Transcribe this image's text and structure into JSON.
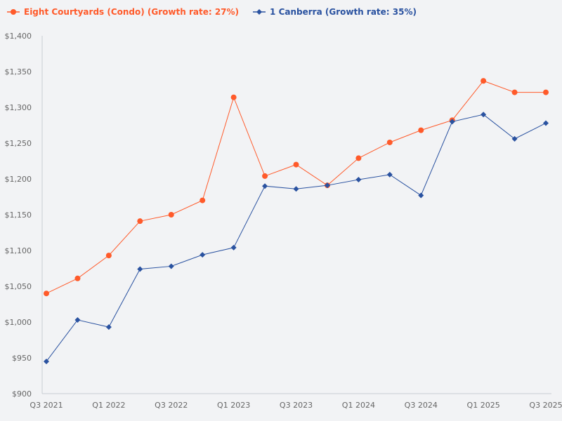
{
  "chart_data": {
    "type": "line",
    "title": "",
    "xlabel": "",
    "ylabel": "",
    "ylim": [
      900,
      1400
    ],
    "yticks": [
      "$900",
      "$950",
      "$1,000",
      "$1,050",
      "$1,100",
      "$1,150",
      "$1,200",
      "$1,250",
      "$1,300",
      "$1,350",
      "$1,400"
    ],
    "ytick_values": [
      900,
      950,
      1000,
      1050,
      1100,
      1150,
      1200,
      1250,
      1300,
      1350,
      1400
    ],
    "categories": [
      "Q3 2021",
      "Q4 2021",
      "Q1 2022",
      "Q2 2022",
      "Q3 2022",
      "Q4 2022",
      "Q1 2023",
      "Q2 2023",
      "Q3 2023",
      "Q4 2023",
      "Q1 2024",
      "Q2 2024",
      "Q3 2024",
      "Q4 2024",
      "Q1 2025",
      "Q2 2025",
      "Q3 2025"
    ],
    "xtick_labels": [
      "Q3 2021",
      "Q1 2022",
      "Q3 2022",
      "Q1 2023",
      "Q3 2023",
      "Q1 2024",
      "Q3 2024",
      "Q1 2025",
      "Q3 2025"
    ],
    "grid": false,
    "legend_position": "top-left",
    "series": [
      {
        "name": "Eight Courtyards (Condo) (Growth rate: 27%)",
        "color": "#ff5a2a",
        "marker": "circle",
        "values": [
          1040,
          1061,
          1093,
          1141,
          1150,
          1170,
          1314,
          1204,
          1220,
          1191,
          1229,
          1251,
          1268,
          1282,
          1337,
          1321,
          1321
        ]
      },
      {
        "name": "1 Canberra (Growth rate: 35%)",
        "color": "#2a52a0",
        "marker": "diamond",
        "values": [
          945,
          1003,
          993,
          1074,
          1078,
          1094,
          1104,
          1190,
          1186,
          1191,
          1199,
          1206,
          1177,
          1280,
          1290,
          1256,
          1278
        ]
      }
    ]
  }
}
